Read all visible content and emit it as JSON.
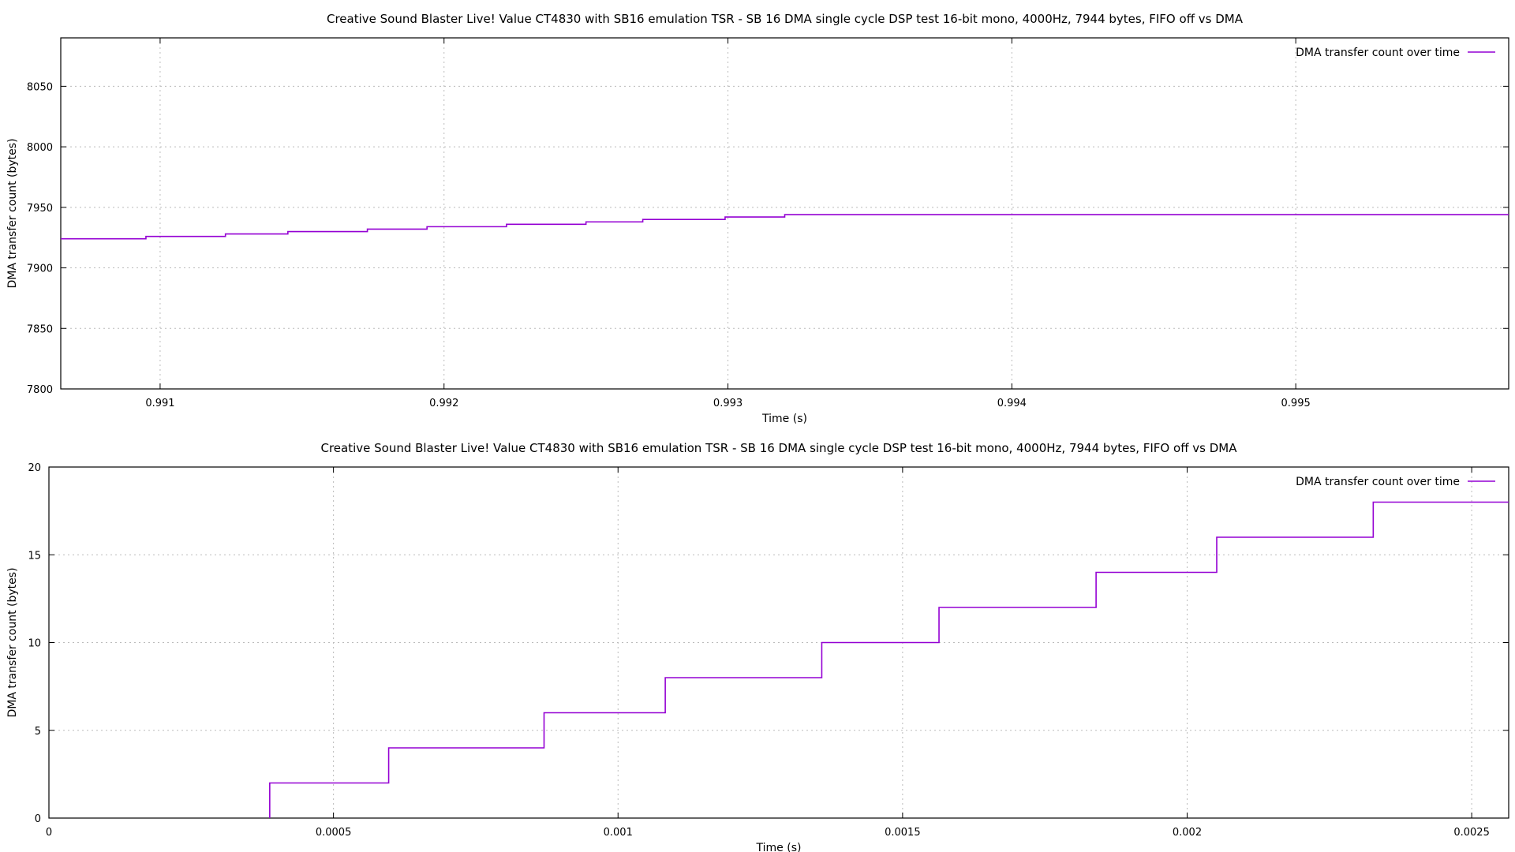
{
  "chart_data": [
    {
      "type": "line",
      "step": true,
      "title": "Creative Sound Blaster Live! Value CT4830 with SB16 emulation TSR - SB 16 DMA single cycle DSP test 16-bit mono, 4000Hz, 7944 bytes, FIFO off vs DMA",
      "xlabel": "Time (s)",
      "ylabel": "DMA transfer count (bytes)",
      "xlim": [
        0.99065,
        0.99575
      ],
      "ylim": [
        7800,
        8090
      ],
      "xticks": [
        0.991,
        0.992,
        0.993,
        0.994,
        0.995
      ],
      "xtick_labels": [
        "0.991",
        "0.992",
        "0.993",
        "0.994",
        "0.995"
      ],
      "yticks": [
        7800,
        7850,
        7900,
        7950,
        8000,
        8050
      ],
      "ytick_labels": [
        "7800",
        "7850",
        "7900",
        "7950",
        "8000",
        "8050"
      ],
      "grid": true,
      "legend_position": "top-right",
      "series": [
        {
          "name": "DMA transfer count over time",
          "color": "#9400d3",
          "x": [
            0.99065,
            0.99095,
            0.99123,
            0.99145,
            0.99173,
            0.99194,
            0.99222,
            0.9925,
            0.9927,
            0.99299,
            0.9932,
            0.99575
          ],
          "y": [
            7924,
            7926,
            7928,
            7930,
            7932,
            7934,
            7936,
            7938,
            7940,
            7942,
            7944,
            7944
          ]
        }
      ]
    },
    {
      "type": "line",
      "step": true,
      "title": "Creative Sound Blaster Live! Value CT4830 with SB16 emulation TSR - SB 16 DMA single cycle DSP test 16-bit mono, 4000Hz, 7944 bytes, FIFO off vs DMA",
      "xlabel": "Time (s)",
      "ylabel": "DMA transfer count (bytes)",
      "xlim": [
        0,
        0.002565
      ],
      "ylim": [
        0,
        20
      ],
      "xticks": [
        0,
        0.0005,
        0.001,
        0.0015,
        0.002,
        0.0025
      ],
      "xtick_labels": [
        "0",
        "0.0005",
        "0.001",
        "0.0015",
        "0.002",
        "0.0025"
      ],
      "yticks": [
        0,
        5,
        10,
        15,
        20
      ],
      "ytick_labels": [
        "0",
        "5",
        "10",
        "15",
        "20"
      ],
      "grid": true,
      "legend_position": "top-right",
      "series": [
        {
          "name": "DMA transfer count over time",
          "color": "#9400d3",
          "x": [
            0.000388,
            0.000597,
            0.00087,
            0.001083,
            0.001358,
            0.001564,
            0.00184,
            0.002052,
            0.002327,
            0.002565
          ],
          "y": [
            2,
            4,
            6,
            8,
            10,
            12,
            14,
            16,
            18,
            18
          ]
        }
      ]
    }
  ]
}
